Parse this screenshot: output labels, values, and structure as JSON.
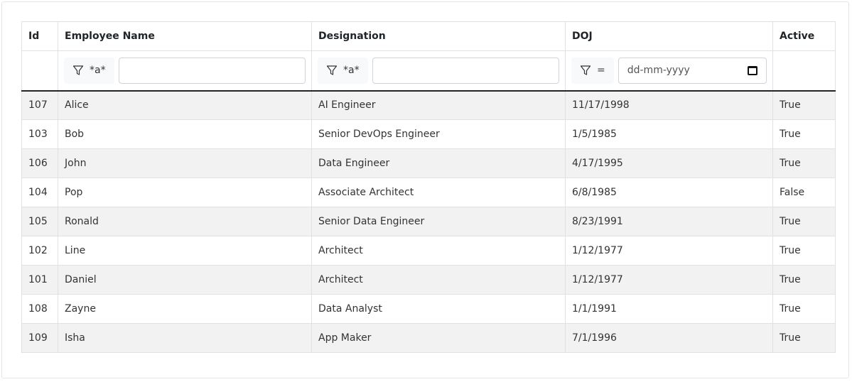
{
  "columns": [
    {
      "key": "id",
      "label": "Id"
    },
    {
      "key": "name",
      "label": "Employee Name"
    },
    {
      "key": "designation",
      "label": "Designation"
    },
    {
      "key": "doj",
      "label": "DOJ"
    },
    {
      "key": "active",
      "label": "Active"
    }
  ],
  "filters": {
    "name": {
      "operator": "*a*",
      "value": "",
      "icon": "funnel-icon"
    },
    "designation": {
      "operator": "*a*",
      "value": "",
      "icon": "funnel-icon"
    },
    "doj": {
      "operator": "=",
      "placeholder": "dd-mm-yyyy",
      "icon": "funnel-icon",
      "picker_icon": "calendar-icon"
    }
  },
  "rows": [
    {
      "id": "107",
      "name": "Alice",
      "designation": "AI Engineer",
      "doj": "11/17/1998",
      "active": "True"
    },
    {
      "id": "103",
      "name": "Bob",
      "designation": "Senior DevOps Engineer",
      "doj": "1/5/1985",
      "active": "True"
    },
    {
      "id": "106",
      "name": "John",
      "designation": "Data Engineer",
      "doj": "4/17/1995",
      "active": "True"
    },
    {
      "id": "104",
      "name": "Pop",
      "designation": "Associate Architect",
      "doj": "6/8/1985",
      "active": "False"
    },
    {
      "id": "105",
      "name": "Ronald",
      "designation": "Senior Data Engineer",
      "doj": "8/23/1991",
      "active": "True"
    },
    {
      "id": "102",
      "name": "Line",
      "designation": "Architect",
      "doj": "1/12/1977",
      "active": "True"
    },
    {
      "id": "101",
      "name": "Daniel",
      "designation": "Architect",
      "doj": "1/12/1977",
      "active": "True"
    },
    {
      "id": "108",
      "name": "Zayne",
      "designation": "Data Analyst",
      "doj": "1/1/1991",
      "active": "True"
    },
    {
      "id": "109",
      "name": "Isha",
      "designation": "App Maker",
      "doj": "7/1/1996",
      "active": "True"
    }
  ]
}
